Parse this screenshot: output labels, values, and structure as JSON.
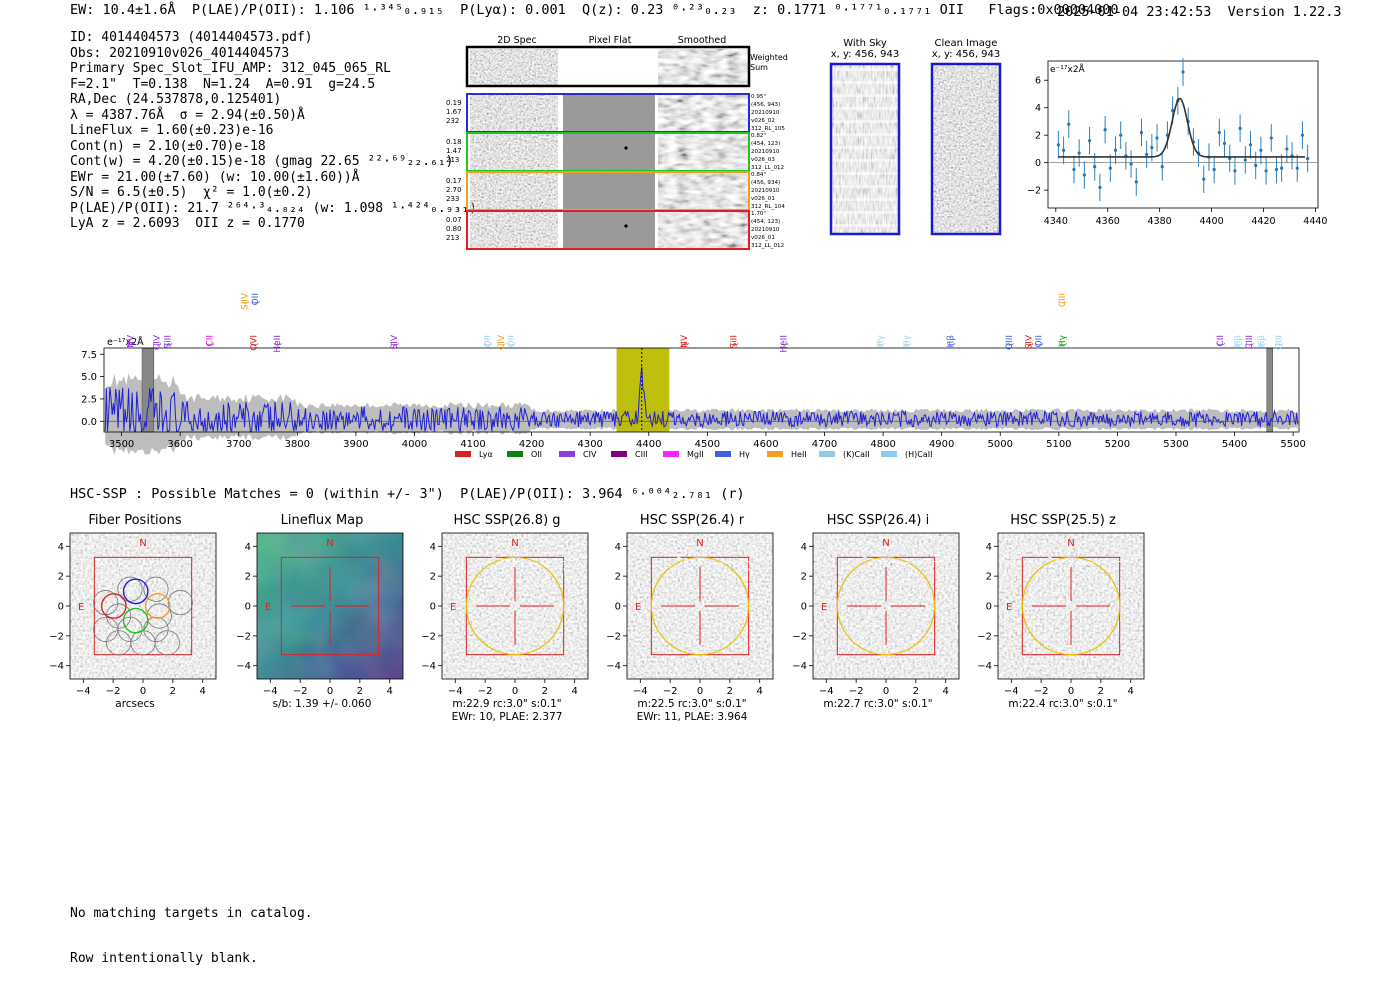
{
  "header": {
    "left": "EW: 10.4±1.6Å  P(LAE)/P(OII): 1.106 ¹·³⁴⁵₀.₉₁₅  P(Lyα): 0.001  Q(z): 0.23 ⁰·²³₀.₂₃  z: 0.1771 ⁰·¹⁷⁷¹₀.₁₇₇₁ OII   Flags:0x00004000",
    "right": "2025-01-04 23:42:53  Version 1.22.3"
  },
  "info": [
    "ID: 4014404573 (4014404573.pdf)",
    "Obs: 20210910v026_4014404573",
    "Primary Spec_Slot_IFU_AMP: 312_045_065_RL",
    "F=2.1\"  T=0.138  N=1.24  A=0.91  g=24.5",
    "RA,Dec (24.537878,0.125401)",
    "λ = 4387.76Å  σ = 2.94(±0.50)Å",
    "LineFlux = 1.60(±0.23)e-16",
    "Cont(n) = 2.10(±0.70)e-18",
    "Cont(w) = 4.20(±0.15)e-18 (gmag 22.65 ²²·⁶⁹₂₂.₆₁)",
    "EWr = 21.00(±7.60) (w: 10.00(±1.60))Å",
    "S/N = 6.5(±0.5)  χ² = 1.0(±0.2)",
    "P(LAE)/P(OII): 21.7 ²⁶⁴·³₄.₈₂₄ (w: 1.098 ¹·⁴²⁴₀.₉₃₁)",
    "LyA z = 2.6093  OII z = 0.1770"
  ],
  "cutouts": {
    "col_titles": [
      "2D Spec",
      "Pixel Flat",
      "Smoothed"
    ],
    "weighted_label": "Weighted Sum",
    "rows": [
      {
        "color": "#2b2bd6",
        "left": [
          "0.19",
          "1.67",
          "232"
        ],
        "right": [
          "0.95\"",
          "(456, 943)",
          "20210910",
          "v026_02",
          "312_RL_105"
        ]
      },
      {
        "color": "#22c422",
        "left": [
          "0.18",
          "1.47",
          "213"
        ],
        "right": [
          "0.82\"",
          "(454, 123)",
          "20210910",
          "v026_03",
          "312_LL_012"
        ]
      },
      {
        "color": "#f0a020",
        "left": [
          "0.17",
          "2.70",
          "233"
        ],
        "right": [
          "0.84\"",
          "(456, 934)",
          "20210910",
          "v026_01",
          "312_RL_104"
        ]
      },
      {
        "color": "#e02020",
        "left": [
          "0.07",
          "0.80",
          "213"
        ],
        "right": [
          "1.70\"",
          "(454, 123)",
          "20210910",
          "v026_01",
          "312_LL_012"
        ]
      }
    ]
  },
  "sky_panels": [
    {
      "title": "With Sky",
      "sub": "x, y: 456, 943"
    },
    {
      "title": "Clean Image",
      "sub": "x, y: 456, 943"
    }
  ],
  "chart_data": [
    {
      "type": "scatter",
      "name": "line-fit-zoom",
      "unit_label": "e⁻¹⁷x2Å",
      "xlim": [
        4337,
        4441
      ],
      "ylim": [
        -3.3,
        7.4
      ],
      "xticks": [
        4340,
        4360,
        4380,
        4400,
        4420,
        4440
      ],
      "yticks": [
        -2,
        0,
        2,
        4,
        6
      ],
      "points": [
        [
          4341,
          1.3
        ],
        [
          4343,
          0.9
        ],
        [
          4345,
          2.8
        ],
        [
          4347,
          -0.5
        ],
        [
          4349,
          0.7
        ],
        [
          4351,
          -0.9
        ],
        [
          4353,
          1.6
        ],
        [
          4355,
          -0.3
        ],
        [
          4357,
          -1.8
        ],
        [
          4359,
          2.4
        ],
        [
          4361,
          -0.4
        ],
        [
          4363,
          0.9
        ],
        [
          4365,
          2.0
        ],
        [
          4367,
          0.5
        ],
        [
          4369,
          -0.1
        ],
        [
          4371,
          -1.4
        ],
        [
          4373,
          2.2
        ],
        [
          4375,
          0.6
        ],
        [
          4377,
          1.1
        ],
        [
          4379,
          1.8
        ],
        [
          4381,
          -0.3
        ],
        [
          4383,
          2.0
        ],
        [
          4385,
          3.8
        ],
        [
          4387,
          4.5
        ],
        [
          4389,
          6.6
        ],
        [
          4391,
          3.0
        ],
        [
          4393,
          1.5
        ],
        [
          4395,
          0.7
        ],
        [
          4397,
          -1.2
        ],
        [
          4399,
          0.4
        ],
        [
          4401,
          -0.5
        ],
        [
          4403,
          2.2
        ],
        [
          4405,
          1.4
        ],
        [
          4407,
          0.3
        ],
        [
          4409,
          -0.6
        ],
        [
          4411,
          2.5
        ],
        [
          4413,
          0.2
        ],
        [
          4415,
          1.3
        ],
        [
          4417,
          -0.2
        ],
        [
          4419,
          0.9
        ],
        [
          4421,
          -0.6
        ],
        [
          4423,
          1.8
        ],
        [
          4425,
          -0.5
        ],
        [
          4427,
          -0.4
        ],
        [
          4429,
          1.0
        ],
        [
          4431,
          0.5
        ],
        [
          4433,
          -0.4
        ],
        [
          4435,
          2.0
        ],
        [
          4437,
          0.3
        ]
      ],
      "error": 1.0,
      "fit": {
        "center": 4387.76,
        "sigma": 2.94,
        "amplitude": 4.25,
        "continuum": 0.42
      }
    },
    {
      "type": "line",
      "name": "full-spectrum",
      "unit_label": "e⁻¹⁷x2Å",
      "xlim": [
        3470,
        5510
      ],
      "ylim": [
        -1.2,
        8.2
      ],
      "xticks": [
        3500,
        3600,
        3700,
        3800,
        3900,
        4000,
        4100,
        4200,
        4300,
        4400,
        4500,
        4600,
        4700,
        4800,
        4900,
        5000,
        5100,
        5200,
        5300,
        5400,
        5500
      ],
      "yticks": [
        0.0,
        2.5,
        5.0,
        7.5
      ],
      "highlight_band": [
        4345,
        4435
      ],
      "line_marker": 4388,
      "masked_bands": [
        [
          3535,
          3555
        ],
        [
          5455,
          5465
        ]
      ],
      "line_labels": [
        {
          "w": 3515,
          "label": "NV",
          "color": "#8a2be2",
          "row": 0
        },
        {
          "w": 3560,
          "label": "CIV",
          "color": "#8a2be2",
          "row": 0
        },
        {
          "w": 3578,
          "label": "SiII",
          "color": "#8a2be2",
          "row": 0
        },
        {
          "w": 3650,
          "label": "CII",
          "color": "#ee00ee",
          "row": 0
        },
        {
          "w": 3725,
          "label": "OVI",
          "color": "#e02020",
          "row": 0
        },
        {
          "w": 3765,
          "label": "HeII",
          "color": "#8a2be2",
          "row": 0
        },
        {
          "w": 3965,
          "label": "SIV",
          "color": "#8a2be2",
          "row": 0
        },
        {
          "w": 4125,
          "label": "OII",
          "color": "#9ad4ee",
          "row": 0
        },
        {
          "w": 4148,
          "label": "CIV",
          "color": "#f0a020",
          "row": 0
        },
        {
          "w": 4165,
          "label": "OII",
          "color": "#9ad4ee",
          "row": 0
        },
        {
          "w": 4460,
          "label": "NV",
          "color": "#e02020",
          "row": 0
        },
        {
          "w": 4545,
          "label": "SiII",
          "color": "#e02020",
          "row": 0
        },
        {
          "w": 4630,
          "label": "HeII",
          "color": "#8a2be2",
          "row": 0
        },
        {
          "w": 4795,
          "label": "Hγ",
          "color": "#9ad4ee",
          "row": 0
        },
        {
          "w": 4840,
          "label": "Hγ",
          "color": "#9ad4ee",
          "row": 0
        },
        {
          "w": 4915,
          "label": "Hβ",
          "color": "#4060e0",
          "row": 0
        },
        {
          "w": 5015,
          "label": "OIII",
          "color": "#4060e0",
          "row": 0
        },
        {
          "w": 5048,
          "label": "SIV",
          "color": "#e02020",
          "row": 0
        },
        {
          "w": 5065,
          "label": "OII",
          "color": "#4060e0",
          "row": 0
        },
        {
          "w": 5105,
          "label": "Hγ",
          "color": "#10a010",
          "row": 0
        },
        {
          "w": 5375,
          "label": "CII",
          "color": "#8a2be2",
          "row": 0
        },
        {
          "w": 5405,
          "label": "Hβ",
          "color": "#9ad4ee",
          "row": 0
        },
        {
          "w": 5425,
          "label": "CIII",
          "color": "#8a2be2",
          "row": 0
        },
        {
          "w": 5445,
          "label": "Hβ",
          "color": "#9ad4ee",
          "row": 0
        },
        {
          "w": 5475,
          "label": "OIII",
          "color": "#9ad4ee",
          "row": 0
        },
        {
          "w": 3710,
          "label": "SiIV",
          "color": "#f0a020",
          "row": 1
        },
        {
          "w": 3728,
          "label": "OII",
          "color": "#4060e0",
          "row": 1
        },
        {
          "w": 5105,
          "label": "CIII",
          "color": "#f0a020",
          "row": 1
        }
      ],
      "legend": [
        {
          "label": "Lyα",
          "color": "#e02020"
        },
        {
          "label": "OII",
          "color": "#108010"
        },
        {
          "label": "CIV",
          "color": "#8a40e0"
        },
        {
          "label": "CIII",
          "color": "#800080"
        },
        {
          "label": "MgII",
          "color": "#ff20ff"
        },
        {
          "label": "Hγ",
          "color": "#4060e0"
        },
        {
          "label": "HeII",
          "color": "#f0a020"
        },
        {
          "label": "(K)CaII",
          "color": "#90ccea"
        },
        {
          "label": "(H)CaII",
          "color": "#90ccea"
        }
      ]
    }
  ],
  "hsc_line": "HSC-SSP : Possible Matches = 0 (within +/- 3\")  P(LAE)/P(OII): 3.964 ⁶·⁰⁰⁴₂.₇₈₁ (r)",
  "thumbs": {
    "north_label": "N",
    "east_label": "E",
    "ticks": [
      -4,
      -2,
      0,
      2,
      4
    ],
    "panels": [
      {
        "title": "Fiber Positions",
        "captions": [
          "arcsecs"
        ],
        "kind": "fiber"
      },
      {
        "title": "Lineflux Map",
        "captions": [
          "s/b: 1.39 +/- 0.060"
        ],
        "kind": "flux"
      },
      {
        "title": "HSC SSP(26.8) g",
        "captions": [
          "m:22.9 rc:3.0\"  s:0.1\"",
          "EWr: 10, PLAE: 2.377"
        ],
        "kind": "hsc"
      },
      {
        "title": "HSC SSP(26.4) r",
        "captions": [
          "m:22.5 rc:3.0\"  s:0.1\"",
          "EWr: 11, PLAE: 3.964"
        ],
        "kind": "hsc"
      },
      {
        "title": "HSC SSP(26.4) i",
        "captions": [
          "m:22.7 rc:3.0\"  s:0.1\""
        ],
        "kind": "hsc"
      },
      {
        "title": "HSC SSP(25.5) z",
        "captions": [
          "m:22.4 rc:3.0\"  s:0.1\""
        ],
        "kind": "hsc"
      }
    ]
  },
  "footer": [
    "No matching targets in catalog.",
    "Row intentionally blank."
  ]
}
